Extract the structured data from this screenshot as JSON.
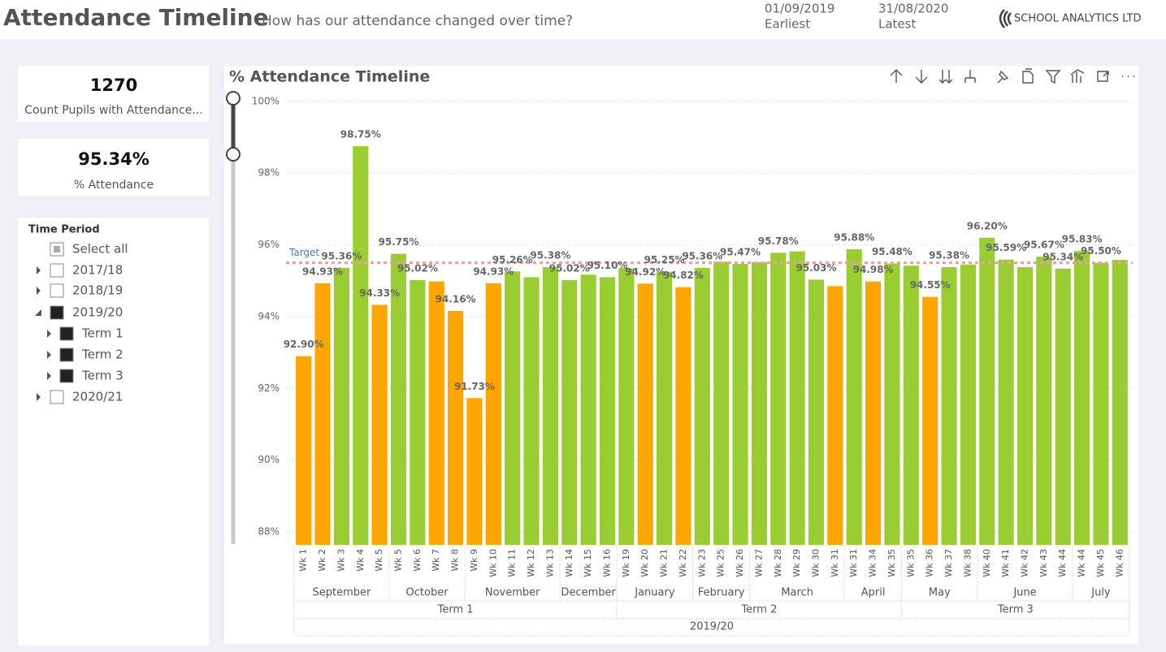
{
  "header": {
    "title": "Attendance Timeline",
    "subtitle": "How has our attendance changed over time?",
    "earliest_date": "01/09/2019",
    "earliest_label": "Earliest",
    "latest_date": "31/08/2020",
    "latest_label": "Latest",
    "logo": "SCHOOL ANALYTICS LTD"
  },
  "cards": [
    {
      "value": "1270",
      "label": "Count Pupils with Attendance..."
    },
    {
      "value": "95.34%",
      "label": "% Attendance"
    }
  ],
  "slicer": {
    "title": "Time Period",
    "items": [
      {
        "label": "Select all",
        "state": "partial",
        "level": 0,
        "expanded": null
      },
      {
        "label": "2017/18",
        "state": "unchecked",
        "level": 0,
        "expanded": false
      },
      {
        "label": "2018/19",
        "state": "unchecked",
        "level": 0,
        "expanded": false
      },
      {
        "label": "2019/20",
        "state": "checked",
        "level": 0,
        "expanded": true
      },
      {
        "label": "Term 1",
        "state": "checked",
        "level": 1,
        "expanded": false
      },
      {
        "label": "Term 2",
        "state": "checked",
        "level": 1,
        "expanded": false
      },
      {
        "label": "Term 3",
        "state": "checked",
        "level": 1,
        "expanded": false
      },
      {
        "label": "2020/21",
        "state": "unchecked",
        "level": 0,
        "expanded": false
      }
    ]
  },
  "chart_data": {
    "type": "bar",
    "title": "% Attendance Timeline",
    "categories": [
      "Wk 1",
      "Wk 2",
      "Wk 3",
      "Wk 4",
      "Wk 5",
      "Wk 5",
      "Wk 6",
      "Wk 7",
      "Wk 8",
      "Wk 9",
      "Wk 10",
      "Wk 11",
      "Wk 12",
      "Wk 13",
      "Wk 14",
      "Wk 15",
      "Wk 16",
      "Wk 19",
      "Wk 20",
      "Wk 21",
      "Wk 22",
      "Wk 23",
      "Wk 25",
      "Wk 26",
      "Wk 27",
      "Wk 28",
      "Wk 29",
      "Wk 30",
      "Wk 31",
      "Wk 31",
      "Wk 34",
      "Wk 35",
      "Wk 35",
      "Wk 36",
      "Wk 37",
      "Wk 38",
      "Wk 40",
      "Wk 41",
      "Wk 42",
      "Wk 43",
      "Wk 44",
      "Wk 44",
      "Wk 45",
      "Wk 46"
    ],
    "values": [
      92.9,
      94.93,
      95.36,
      98.75,
      94.33,
      95.75,
      95.02,
      94.98,
      94.16,
      91.73,
      94.93,
      95.26,
      95.1,
      95.38,
      95.02,
      95.17,
      95.1,
      95.35,
      94.92,
      95.25,
      94.82,
      95.36,
      95.53,
      95.47,
      95.52,
      95.78,
      95.82,
      95.03,
      94.85,
      95.88,
      94.98,
      95.48,
      95.42,
      94.55,
      95.38,
      95.45,
      96.2,
      95.59,
      95.38,
      95.67,
      95.34,
      95.83,
      95.5,
      95.58
    ],
    "value_labels": [
      "92.90%",
      "94.93%",
      "95.36%",
      "98.75%",
      "94.33%",
      "95.75%",
      "95.02%",
      null,
      "94.16%",
      "91.73%",
      "94.93%",
      "95.26%",
      null,
      "95.38%",
      "95.02%",
      null,
      "95.10%",
      null,
      "94.92%",
      "95.25%",
      "94.82%",
      "95.36%",
      null,
      "95.47%",
      null,
      "95.78%",
      null,
      "95.03%",
      null,
      "95.88%",
      "94.98%",
      "95.48%",
      null,
      "94.55%",
      "95.38%",
      null,
      "96.20%",
      "95.59%",
      null,
      "95.67%",
      "95.34%",
      "95.83%",
      "95.50%",
      null
    ],
    "colors": [
      "#ffa500",
      "#ffa500",
      "#9acd32",
      "#9acd32",
      "#ffa500",
      "#9acd32",
      "#9acd32",
      "#ffa500",
      "#ffa500",
      "#ffa500",
      "#ffa500",
      "#9acd32",
      "#9acd32",
      "#9acd32",
      "#9acd32",
      "#9acd32",
      "#9acd32",
      "#9acd32",
      "#ffa500",
      "#9acd32",
      "#ffa500",
      "#9acd32",
      "#9acd32",
      "#9acd32",
      "#9acd32",
      "#9acd32",
      "#9acd32",
      "#9acd32",
      "#ffa500",
      "#9acd32",
      "#ffa500",
      "#9acd32",
      "#9acd32",
      "#ffa500",
      "#9acd32",
      "#9acd32",
      "#9acd32",
      "#9acd32",
      "#9acd32",
      "#9acd32",
      "#9acd32",
      "#9acd32",
      "#9acd32",
      "#9acd32"
    ],
    "ylim": [
      87.64,
      100.2
    ],
    "yticks": [
      {
        "value": 88,
        "label": "88%"
      },
      {
        "value": 90,
        "label": "90%"
      },
      {
        "value": 92,
        "label": "92%"
      },
      {
        "value": 94,
        "label": "94%"
      },
      {
        "value": 96,
        "label": "96%"
      },
      {
        "value": 98,
        "label": "98%"
      },
      {
        "value": 100,
        "label": "100%"
      }
    ],
    "grid": true,
    "target": {
      "label": "Target",
      "value": 95.5,
      "color": "#e8a0a0"
    },
    "x_hierarchy": {
      "year": "2019/20",
      "terms": [
        {
          "label": "Term 1",
          "months": [
            {
              "label": "September",
              "weeks": 5
            },
            {
              "label": "October",
              "weeks": 4
            },
            {
              "label": "November",
              "weeks": 5
            },
            {
              "label": "December",
              "weeks": 3
            }
          ]
        },
        {
          "label": "Term 2",
          "months": [
            {
              "label": "January",
              "weeks": 4
            },
            {
              "label": "February",
              "weeks": 3
            },
            {
              "label": "March",
              "weeks": 5
            },
            {
              "label": "April",
              "weeks": 3
            }
          ]
        },
        {
          "label": "Term 3",
          "months": [
            {
              "label": "May",
              "weeks": 4
            },
            {
              "label": "June",
              "weeks": 5
            },
            {
              "label": "July",
              "weeks": 3
            }
          ]
        }
      ]
    }
  }
}
